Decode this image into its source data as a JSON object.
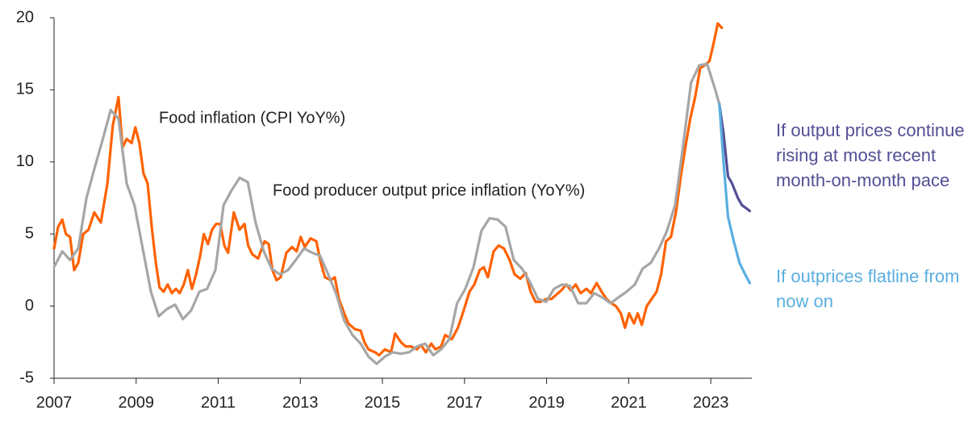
{
  "chart_data": {
    "type": "line",
    "xlim": [
      2007,
      2024
    ],
    "xticks": [
      2007,
      2009,
      2011,
      2013,
      2015,
      2017,
      2019,
      2021,
      2023
    ],
    "ylim": [
      -5,
      20
    ],
    "yticks": [
      -5,
      0,
      5,
      10,
      15,
      20
    ],
    "grid": false,
    "series": [
      {
        "name": "Food inflation (CPI YoY%)",
        "color": "#ff6200",
        "x": [
          2007.0,
          2007.1,
          2007.2,
          2007.29,
          2007.39,
          2007.49,
          2007.59,
          2007.71,
          2007.84,
          2007.98,
          2008.14,
          2008.3,
          2008.43,
          2008.57,
          2008.67,
          2008.77,
          2008.89,
          2008.98,
          2009.08,
          2009.18,
          2009.28,
          2009.38,
          2009.48,
          2009.57,
          2009.67,
          2009.77,
          2009.87,
          2009.97,
          2010.06,
          2010.16,
          2010.26,
          2010.36,
          2010.46,
          2010.56,
          2010.65,
          2010.75,
          2010.85,
          2010.95,
          2011.05,
          2011.15,
          2011.24,
          2011.38,
          2011.52,
          2011.64,
          2011.73,
          2011.83,
          2011.97,
          2012.13,
          2012.23,
          2012.32,
          2012.42,
          2012.52,
          2012.66,
          2012.8,
          2012.91,
          2013.01,
          2013.11,
          2013.25,
          2013.39,
          2013.5,
          2013.6,
          2013.74,
          2013.84,
          2013.94,
          2014.07,
          2014.17,
          2014.33,
          2014.47,
          2014.56,
          2014.66,
          2014.82,
          2014.92,
          2015.06,
          2015.21,
          2015.31,
          2015.45,
          2015.57,
          2015.7,
          2015.84,
          2015.94,
          2016.06,
          2016.19,
          2016.29,
          2016.43,
          2016.53,
          2016.69,
          2016.84,
          2016.98,
          2017.12,
          2017.24,
          2017.37,
          2017.47,
          2017.57,
          2017.71,
          2017.83,
          2017.96,
          2018.1,
          2018.22,
          2018.36,
          2018.49,
          2018.61,
          2018.73,
          2018.85,
          2019.0,
          2019.12,
          2019.24,
          2019.36,
          2019.48,
          2019.59,
          2019.71,
          2019.83,
          2019.97,
          2020.08,
          2020.22,
          2020.34,
          2020.46,
          2020.58,
          2020.69,
          2020.81,
          2020.91,
          2021.01,
          2021.13,
          2021.22,
          2021.32,
          2021.44,
          2021.56,
          2021.68,
          2021.79,
          2021.91,
          2022.03,
          2022.15,
          2022.27,
          2022.38,
          2022.5,
          2022.62,
          2022.74,
          2022.85,
          2022.97,
          2023.09,
          2023.17,
          2023.27
        ],
        "values": [
          4.0,
          5.5,
          6.0,
          5.0,
          4.8,
          2.5,
          3.0,
          5.0,
          5.3,
          6.5,
          5.8,
          8.5,
          12.5,
          14.5,
          11.0,
          11.6,
          11.3,
          12.4,
          11.3,
          9.2,
          8.5,
          5.5,
          3.0,
          1.3,
          1.0,
          1.5,
          0.9,
          1.2,
          0.9,
          1.5,
          2.5,
          1.2,
          2.2,
          3.5,
          5.0,
          4.3,
          5.3,
          5.7,
          5.7,
          4.2,
          3.7,
          6.5,
          5.3,
          5.7,
          4.2,
          3.6,
          3.3,
          4.5,
          4.3,
          2.5,
          1.8,
          2.0,
          3.7,
          4.1,
          3.8,
          4.8,
          4.1,
          4.7,
          4.5,
          3.0,
          2.0,
          1.8,
          2.0,
          0.5,
          -0.5,
          -1.2,
          -1.6,
          -1.7,
          -2.5,
          -3.0,
          -3.2,
          -3.4,
          -3.0,
          -3.2,
          -1.9,
          -2.5,
          -2.8,
          -2.8,
          -3.0,
          -2.7,
          -3.2,
          -2.6,
          -3.0,
          -2.8,
          -2.0,
          -2.3,
          -1.5,
          -0.3,
          1.0,
          1.5,
          2.5,
          2.7,
          2.0,
          3.8,
          4.2,
          4.0,
          3.2,
          2.2,
          1.9,
          2.3,
          1.0,
          0.3,
          0.3,
          0.5,
          0.5,
          0.8,
          1.1,
          1.5,
          1.1,
          1.5,
          0.9,
          1.2,
          0.9,
          1.6,
          1.0,
          0.5,
          0.2,
          0.0,
          -0.5,
          -1.5,
          -0.5,
          -1.2,
          -0.5,
          -1.3,
          0.0,
          0.5,
          1.0,
          2.2,
          4.5,
          4.8,
          6.5,
          9.0,
          11.0,
          13.0,
          14.5,
          16.5,
          16.7,
          17.0,
          18.5,
          19.6,
          19.3
        ]
      },
      {
        "name": "Food producer output price inflation (YoY%)",
        "color": "#a6a6a6",
        "x": [
          2007.0,
          2007.2,
          2007.39,
          2007.59,
          2007.79,
          2007.98,
          2008.18,
          2008.38,
          2008.57,
          2008.77,
          2008.96,
          2009.16,
          2009.36,
          2009.55,
          2009.75,
          2009.95,
          2010.14,
          2010.34,
          2010.54,
          2010.73,
          2010.93,
          2011.13,
          2011.32,
          2011.52,
          2011.72,
          2011.91,
          2012.11,
          2012.3,
          2012.5,
          2012.7,
          2012.89,
          2013.09,
          2013.29,
          2013.48,
          2013.68,
          2013.88,
          2014.07,
          2014.27,
          2014.47,
          2014.66,
          2014.86,
          2015.06,
          2015.25,
          2015.45,
          2015.65,
          2015.84,
          2016.04,
          2016.24,
          2016.43,
          2016.63,
          2016.82,
          2017.02,
          2017.22,
          2017.41,
          2017.61,
          2017.81,
          2018.0,
          2018.2,
          2018.4,
          2018.59,
          2018.79,
          2018.99,
          2019.18,
          2019.38,
          2019.57,
          2019.77,
          2019.97,
          2020.16,
          2020.36,
          2020.56,
          2020.75,
          2020.95,
          2021.15,
          2021.34,
          2021.54,
          2021.74,
          2021.93,
          2022.13,
          2022.32,
          2022.52,
          2022.72,
          2022.91,
          2023.11,
          2023.21
        ],
        "values": [
          2.7,
          3.8,
          3.2,
          4.0,
          7.5,
          9.5,
          11.5,
          13.6,
          13.0,
          8.5,
          7.0,
          4.0,
          1.0,
          -0.7,
          -0.2,
          0.1,
          -0.9,
          -0.3,
          1.0,
          1.2,
          2.5,
          7.0,
          8.0,
          8.9,
          8.6,
          5.8,
          3.8,
          2.6,
          2.2,
          2.5,
          3.2,
          4.0,
          3.7,
          3.5,
          2.2,
          0.8,
          -1.0,
          -2.0,
          -2.6,
          -3.5,
          -4.0,
          -3.5,
          -3.2,
          -3.3,
          -3.2,
          -2.8,
          -2.6,
          -3.4,
          -3.0,
          -2.3,
          0.2,
          1.2,
          2.7,
          5.2,
          6.1,
          6.0,
          5.5,
          3.2,
          2.6,
          1.7,
          0.5,
          0.3,
          1.2,
          1.5,
          1.4,
          0.2,
          0.2,
          0.9,
          0.6,
          0.2,
          0.6,
          1.0,
          1.5,
          2.6,
          3.0,
          4.0,
          5.2,
          7.0,
          11.0,
          15.5,
          16.7,
          16.8,
          15.0,
          14.0
        ]
      },
      {
        "name": "If output prices continue rising at most recent month-on-month pace",
        "color": "#544f95",
        "x": [
          2023.21,
          2023.31,
          2023.42,
          2023.52,
          2023.66,
          2023.76,
          2023.86,
          2023.95
        ],
        "values": [
          14.0,
          12.0,
          9.0,
          8.5,
          7.5,
          7.0,
          6.8,
          6.6
        ]
      },
      {
        "name": "If outprices flatline from now on",
        "color": "#5aaee0",
        "x": [
          2023.21,
          2023.31,
          2023.42,
          2023.56,
          2023.7,
          2023.82,
          2023.95
        ],
        "values": [
          14.0,
          10.0,
          6.2,
          4.5,
          3.0,
          2.3,
          1.6
        ]
      }
    ]
  }
}
